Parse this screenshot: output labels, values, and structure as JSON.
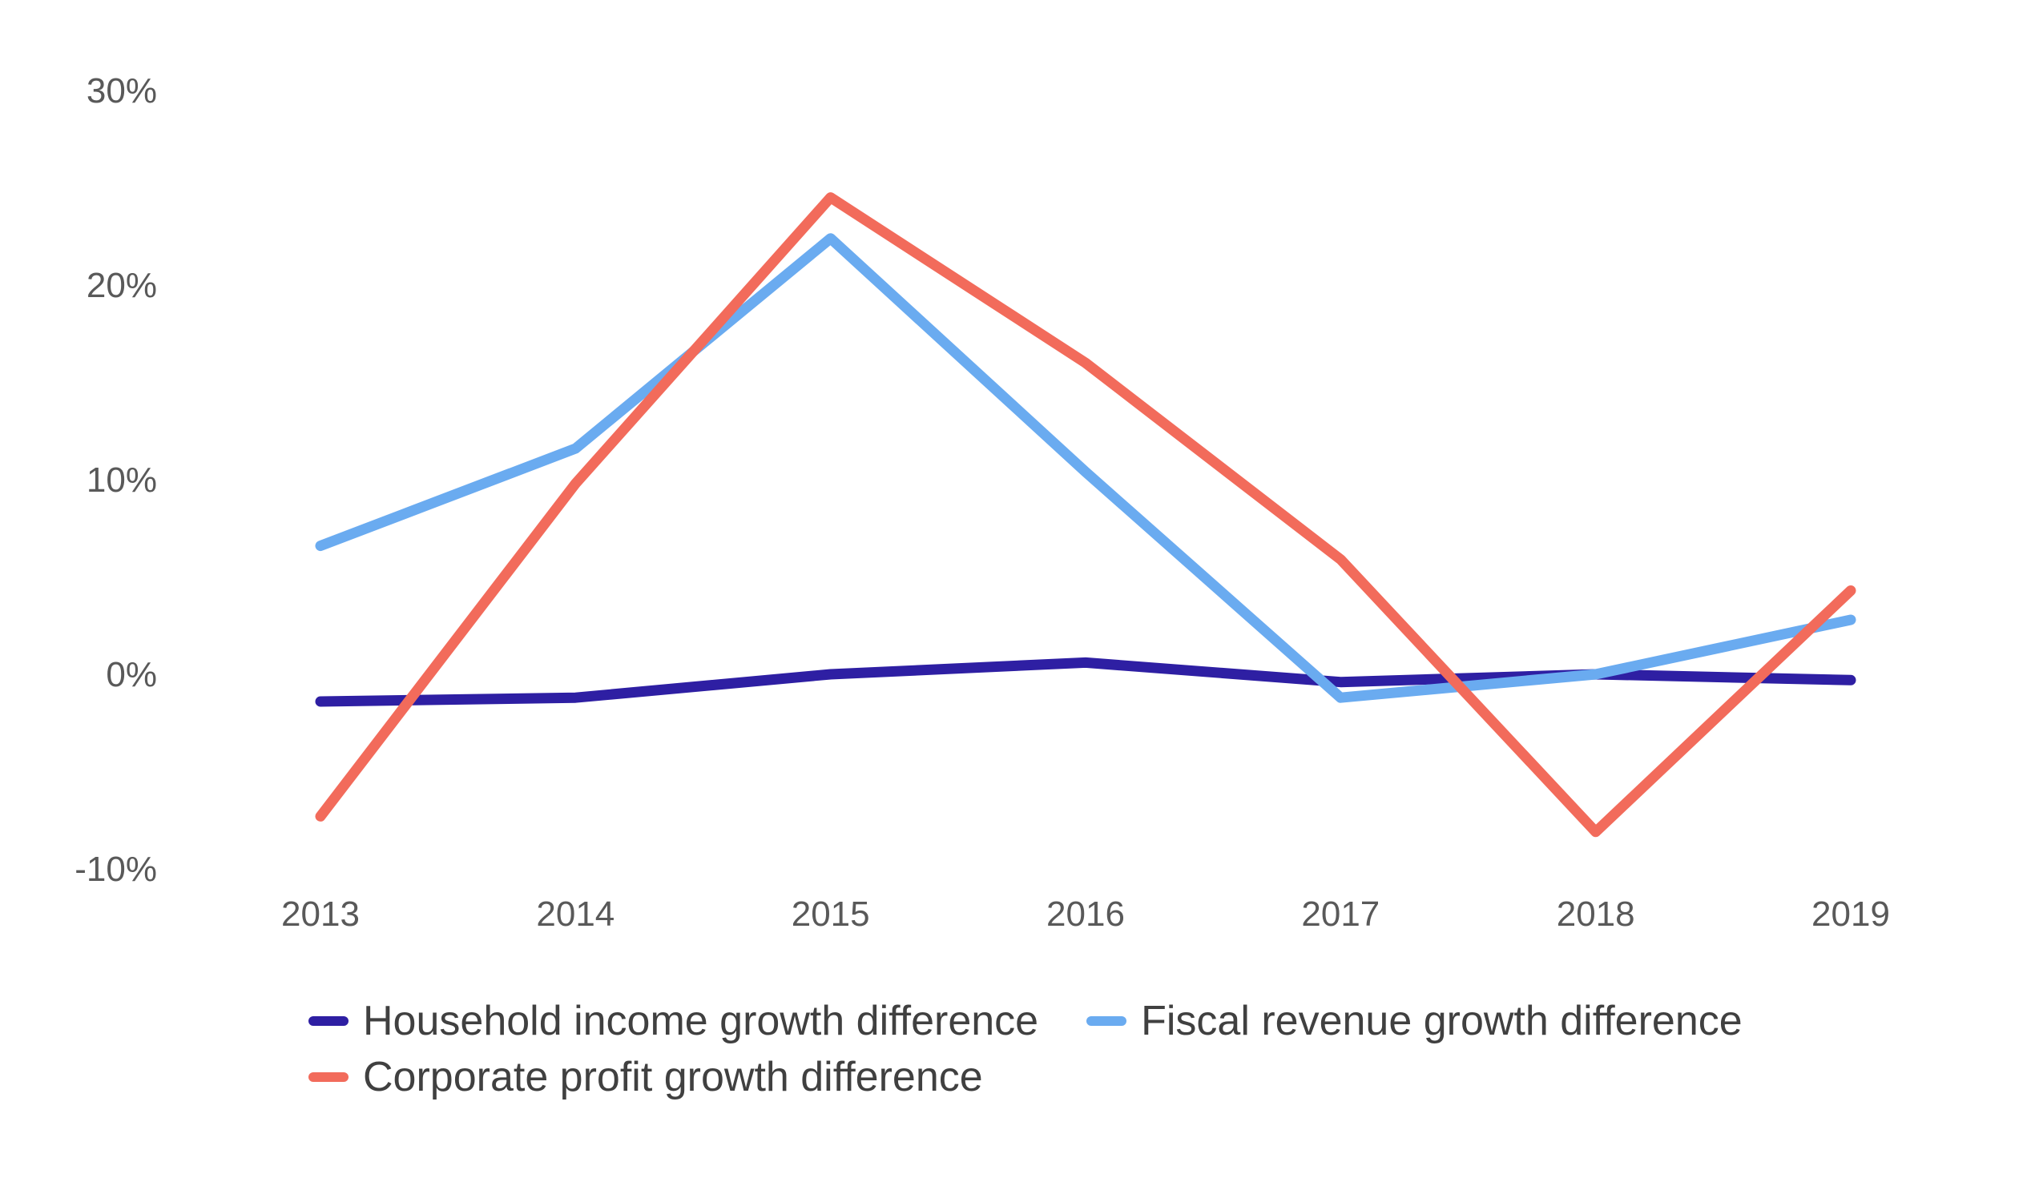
{
  "chart_data": {
    "type": "line",
    "title": "",
    "xlabel": "",
    "ylabel": "",
    "categories": [
      "2013",
      "2014",
      "2015",
      "2016",
      "2017",
      "2018",
      "2019"
    ],
    "ylim": [
      -10,
      30
    ],
    "yticks": [
      30,
      20,
      10,
      0,
      -10
    ],
    "ytick_labels": [
      "30%",
      "20%",
      "10%",
      "0%",
      "-10%"
    ],
    "grid": false,
    "legend_position": "bottom",
    "series": [
      {
        "name": "Household income growth difference",
        "color": "#2e1fa3",
        "values": [
          -1.4,
          -1.2,
          0.0,
          0.6,
          -0.4,
          0.0,
          -0.3
        ]
      },
      {
        "name": "Fiscal revenue growth difference",
        "color": "#6aabf0",
        "values": [
          6.6,
          11.6,
          22.4,
          10.4,
          -1.2,
          0.0,
          2.8
        ]
      },
      {
        "name": "Corporate profit growth difference",
        "color": "#f26b5b",
        "values": [
          -7.3,
          9.8,
          24.5,
          16.0,
          5.9,
          -8.1,
          4.3
        ]
      }
    ]
  }
}
